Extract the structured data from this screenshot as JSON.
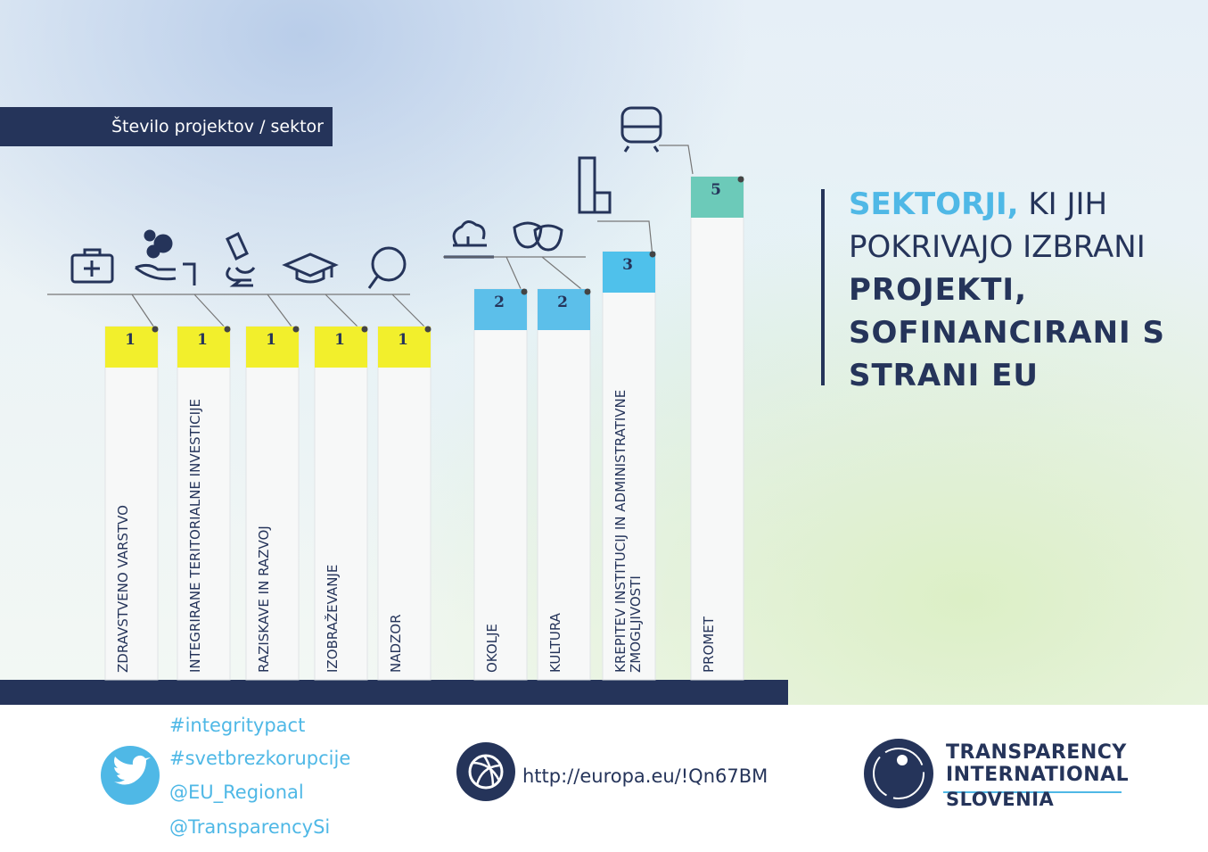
{
  "chart_data": {
    "type": "bar",
    "subtitle": "Število projektov / sektor",
    "title": {
      "highlight": "SEKTORJI,",
      "line1_rest": "KI JIH",
      "line2": "POKRIVAJO IZBRANI",
      "bold": [
        "PROJEKTI,",
        "SOFINANCIRANI S",
        "STRANI EU"
      ]
    },
    "categories": [
      "ZDRAVSTVENO VARSTVO",
      "INTEGRIRANE TERITORIALNE INVESTICIJE",
      "RAZISKAVE IN RAZVOJ",
      "IZOBRAŽEVANJE",
      "NADZOR",
      "OKOLJE",
      "KULTURA",
      "KREPITEV INSTITUCIJ IN ADMINISTRATIVNE ZMOGLJIVOSTI",
      "PROMET"
    ],
    "values": [
      1,
      1,
      1,
      1,
      1,
      2,
      2,
      3,
      5
    ],
    "colors": [
      "#f2ef2c",
      "#f2ef2c",
      "#f2ef2c",
      "#f2ef2c",
      "#f2ef2c",
      "#5cbfea",
      "#5cbfea",
      "#4fc1eb",
      "#6ccab9"
    ]
  },
  "footer": {
    "hashtags": [
      "#integritypact",
      "#svetbrezkorupcije",
      "@EU_Regional",
      "@TransparencySi"
    ],
    "url": "http://europa.eu/!Qn67BM",
    "logo": [
      "TRANSPARENCY",
      "INTERNATIONAL",
      "SLOVENIA"
    ]
  }
}
